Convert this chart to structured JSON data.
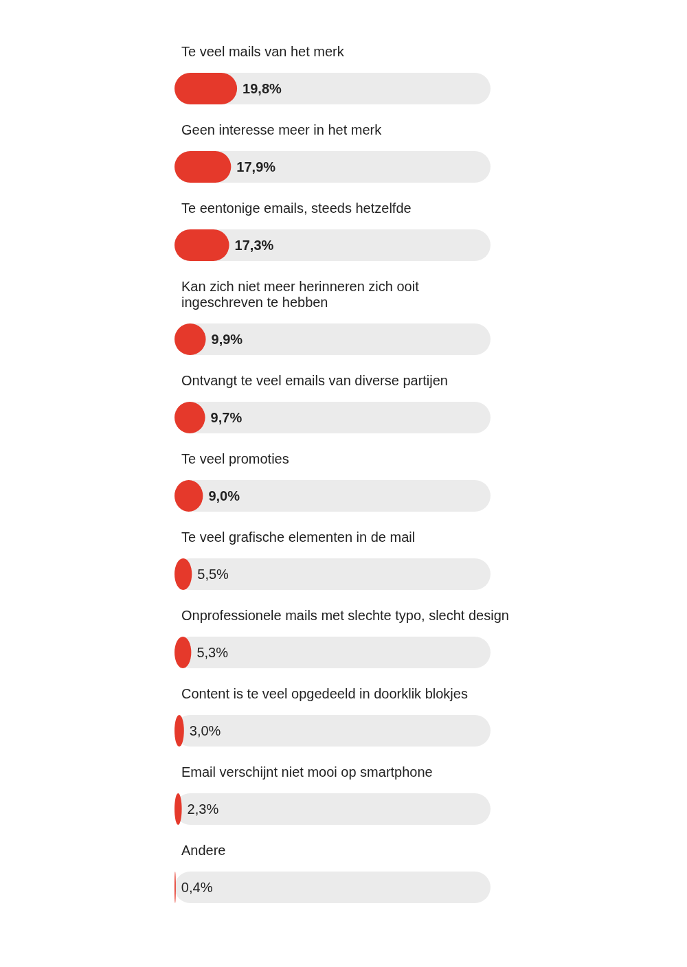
{
  "chart_data": {
    "type": "bar",
    "orientation": "horizontal",
    "categories": [
      "Te veel mails van het merk",
      "Geen interesse meer in het merk",
      "Te eentonige emails, steeds hetzelfde",
      "Kan zich niet meer herinneren zich ooit ingeschreven te hebben",
      "Ontvangt te veel emails van diverse partijen",
      "Te veel promoties",
      "Te veel grafische elementen in de mail",
      "Onprofessionele mails met slechte typo, slecht design",
      "Content is te veel opgedeeld in doorklik blokjes",
      "Email verschijnt niet mooi op smartphone",
      "Andere"
    ],
    "values": [
      19.8,
      17.9,
      17.3,
      9.9,
      9.7,
      9.0,
      5.5,
      5.3,
      3.0,
      2.3,
      0.4
    ],
    "value_labels": [
      "19,8%",
      "17,9%",
      "17,3%",
      "9,9%",
      "9,7%",
      "9,0%",
      "5,5%",
      "5,3%",
      "3,0%",
      "2,3%",
      "0,4%"
    ],
    "color": "#e5392b",
    "xlim": [
      0,
      100
    ]
  }
}
